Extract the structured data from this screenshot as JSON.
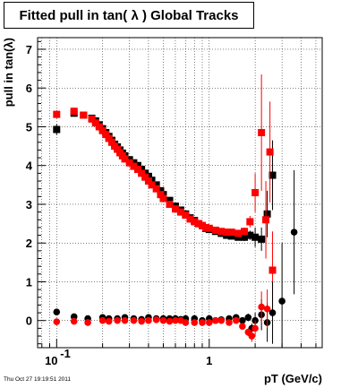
{
  "chart_data": {
    "type": "scatter",
    "title": "Fitted pull in tan( λ )  Global Tracks",
    "xlabel": "pT (GeV/c)",
    "ylabel": "pull in tan(λ)",
    "x_scale": "log",
    "xlim": [
      0.075,
      5.5
    ],
    "ylim": [
      -0.7,
      7.3
    ],
    "y_ticks": [
      "0",
      "1",
      "2",
      "3",
      "4",
      "5",
      "6",
      "7"
    ],
    "x_tick_labels": [
      {
        "value": 0.1,
        "base": "10",
        "exp": "-1"
      },
      {
        "value": 1,
        "base": "1",
        "exp": ""
      }
    ],
    "grid": true,
    "series": [
      {
        "color": "#000000",
        "marker": "square",
        "points": [
          [
            0.1,
            4.93,
            0.14
          ],
          [
            0.13,
            5.35,
            0.08
          ],
          [
            0.15,
            5.3,
            0.06
          ],
          [
            0.17,
            5.22,
            0.05
          ],
          [
            0.18,
            5.15,
            0.05
          ],
          [
            0.19,
            5.05,
            0.05
          ],
          [
            0.2,
            4.95,
            0.05
          ],
          [
            0.21,
            4.85,
            0.05
          ],
          [
            0.22,
            4.75,
            0.05
          ],
          [
            0.23,
            4.65,
            0.05
          ],
          [
            0.24,
            4.55,
            0.05
          ],
          [
            0.25,
            4.48,
            0.05
          ],
          [
            0.26,
            4.4,
            0.05
          ],
          [
            0.27,
            4.32,
            0.05
          ],
          [
            0.28,
            4.25,
            0.05
          ],
          [
            0.3,
            4.15,
            0.05
          ],
          [
            0.32,
            4.07,
            0.05
          ],
          [
            0.34,
            4.0,
            0.05
          ],
          [
            0.36,
            3.9,
            0.05
          ],
          [
            0.38,
            3.8,
            0.05
          ],
          [
            0.4,
            3.72,
            0.05
          ],
          [
            0.42,
            3.62,
            0.05
          ],
          [
            0.45,
            3.5,
            0.05
          ],
          [
            0.48,
            3.35,
            0.05
          ],
          [
            0.5,
            3.25,
            0.05
          ],
          [
            0.55,
            3.1,
            0.05
          ],
          [
            0.6,
            2.95,
            0.05
          ],
          [
            0.65,
            2.85,
            0.05
          ],
          [
            0.7,
            2.75,
            0.05
          ],
          [
            0.75,
            2.65,
            0.05
          ],
          [
            0.8,
            2.58,
            0.05
          ],
          [
            0.85,
            2.5,
            0.05
          ],
          [
            0.9,
            2.45,
            0.05
          ],
          [
            0.95,
            2.38,
            0.05
          ],
          [
            1.0,
            2.35,
            0.05
          ],
          [
            1.1,
            2.3,
            0.06
          ],
          [
            1.2,
            2.25,
            0.06
          ],
          [
            1.3,
            2.2,
            0.07
          ],
          [
            1.4,
            2.18,
            0.08
          ],
          [
            1.55,
            2.15,
            0.08
          ],
          [
            1.7,
            2.15,
            0.1
          ],
          [
            1.85,
            2.2,
            0.12
          ],
          [
            2.0,
            2.15,
            0.25
          ],
          [
            2.2,
            2.1,
            0.3
          ],
          [
            2.4,
            2.75,
            0.6
          ],
          [
            2.6,
            3.75,
            0.9
          ]
        ]
      },
      {
        "color": "#ff0000",
        "marker": "square",
        "points": [
          [
            0.1,
            5.32,
            0.1
          ],
          [
            0.13,
            5.4,
            0.08
          ],
          [
            0.15,
            5.3,
            0.06
          ],
          [
            0.17,
            5.2,
            0.05
          ],
          [
            0.18,
            5.1,
            0.05
          ],
          [
            0.19,
            5.0,
            0.05
          ],
          [
            0.2,
            4.9,
            0.05
          ],
          [
            0.21,
            4.8,
            0.05
          ],
          [
            0.22,
            4.7,
            0.05
          ],
          [
            0.23,
            4.6,
            0.05
          ],
          [
            0.24,
            4.5,
            0.05
          ],
          [
            0.25,
            4.42,
            0.05
          ],
          [
            0.26,
            4.33,
            0.05
          ],
          [
            0.27,
            4.25,
            0.05
          ],
          [
            0.28,
            4.17,
            0.05
          ],
          [
            0.3,
            4.07,
            0.05
          ],
          [
            0.32,
            3.98,
            0.05
          ],
          [
            0.34,
            3.9,
            0.05
          ],
          [
            0.36,
            3.8,
            0.05
          ],
          [
            0.38,
            3.7,
            0.05
          ],
          [
            0.4,
            3.6,
            0.05
          ],
          [
            0.42,
            3.5,
            0.05
          ],
          [
            0.45,
            3.4,
            0.05
          ],
          [
            0.48,
            3.25,
            0.05
          ],
          [
            0.5,
            3.15,
            0.05
          ],
          [
            0.55,
            3.0,
            0.05
          ],
          [
            0.6,
            2.88,
            0.05
          ],
          [
            0.65,
            2.8,
            0.05
          ],
          [
            0.7,
            2.72,
            0.05
          ],
          [
            0.75,
            2.62,
            0.05
          ],
          [
            0.8,
            2.55,
            0.05
          ],
          [
            0.85,
            2.5,
            0.05
          ],
          [
            0.9,
            2.45,
            0.05
          ],
          [
            0.95,
            2.4,
            0.05
          ],
          [
            1.0,
            2.38,
            0.05
          ],
          [
            1.1,
            2.33,
            0.06
          ],
          [
            1.2,
            2.3,
            0.06
          ],
          [
            1.3,
            2.28,
            0.07
          ],
          [
            1.4,
            2.28,
            0.08
          ],
          [
            1.55,
            2.25,
            0.08
          ],
          [
            1.7,
            2.3,
            0.1
          ],
          [
            1.85,
            2.55,
            0.15
          ],
          [
            2.0,
            3.3,
            0.5
          ],
          [
            2.2,
            4.85,
            1.5
          ],
          [
            2.35,
            2.6,
            1.0
          ],
          [
            2.5,
            4.35,
            1.3
          ],
          [
            2.6,
            1.3,
            1.0
          ]
        ]
      },
      {
        "color": "#000000",
        "marker": "circle",
        "points": [
          [
            0.1,
            0.22,
            0.08
          ],
          [
            0.13,
            0.1,
            0.06
          ],
          [
            0.16,
            0.05,
            0.04
          ],
          [
            0.2,
            0.08,
            0.04
          ],
          [
            0.22,
            0.05,
            0.04
          ],
          [
            0.25,
            0.05,
            0.04
          ],
          [
            0.28,
            0.08,
            0.04
          ],
          [
            0.32,
            0.05,
            0.04
          ],
          [
            0.36,
            0.03,
            0.04
          ],
          [
            0.4,
            0.08,
            0.04
          ],
          [
            0.45,
            0.05,
            0.04
          ],
          [
            0.5,
            0.05,
            0.04
          ],
          [
            0.55,
            0.05,
            0.04
          ],
          [
            0.6,
            0.05,
            0.04
          ],
          [
            0.65,
            0.03,
            0.04
          ],
          [
            0.7,
            0.05,
            0.04
          ],
          [
            0.8,
            0.05,
            0.04
          ],
          [
            0.9,
            0.0,
            0.04
          ],
          [
            1.0,
            0.05,
            0.05
          ],
          [
            1.1,
            0.0,
            0.05
          ],
          [
            1.2,
            0.02,
            0.05
          ],
          [
            1.35,
            0.05,
            0.06
          ],
          [
            1.5,
            0.08,
            0.06
          ],
          [
            1.65,
            0.0,
            0.08
          ],
          [
            1.8,
            0.08,
            0.1
          ],
          [
            1.9,
            -0.2,
            0.12
          ],
          [
            2.0,
            0.0,
            0.2
          ],
          [
            2.2,
            0.15,
            0.4
          ],
          [
            2.4,
            -0.05,
            0.5
          ],
          [
            2.6,
            0.2,
            0.8
          ],
          [
            3.0,
            0.5,
            1.5
          ],
          [
            3.6,
            2.28,
            1.6
          ]
        ]
      },
      {
        "color": "#ff0000",
        "marker": "circle",
        "points": [
          [
            0.1,
            -0.03,
            0.06
          ],
          [
            0.13,
            -0.02,
            0.05
          ],
          [
            0.16,
            -0.05,
            0.04
          ],
          [
            0.2,
            0.0,
            0.04
          ],
          [
            0.22,
            -0.02,
            0.04
          ],
          [
            0.25,
            0.0,
            0.04
          ],
          [
            0.28,
            0.0,
            0.04
          ],
          [
            0.32,
            0.0,
            0.04
          ],
          [
            0.36,
            -0.02,
            0.04
          ],
          [
            0.4,
            0.0,
            0.04
          ],
          [
            0.45,
            0.02,
            0.04
          ],
          [
            0.5,
            0.0,
            0.04
          ],
          [
            0.55,
            -0.02,
            0.04
          ],
          [
            0.6,
            0.0,
            0.04
          ],
          [
            0.65,
            0.0,
            0.04
          ],
          [
            0.7,
            -0.05,
            0.04
          ],
          [
            0.8,
            -0.05,
            0.04
          ],
          [
            0.9,
            -0.05,
            0.04
          ],
          [
            1.0,
            -0.05,
            0.05
          ],
          [
            1.1,
            0.0,
            0.05
          ],
          [
            1.2,
            0.0,
            0.05
          ],
          [
            1.35,
            -0.05,
            0.06
          ],
          [
            1.5,
            0.0,
            0.06
          ],
          [
            1.65,
            -0.15,
            0.08
          ],
          [
            1.8,
            -0.3,
            0.1
          ],
          [
            1.9,
            -0.4,
            0.15
          ],
          [
            2.0,
            -0.2,
            0.2
          ],
          [
            2.2,
            0.35,
            0.4
          ],
          [
            2.4,
            0.3,
            0.5
          ]
        ]
      }
    ]
  },
  "footer": {
    "timestamp": "Thu Oct 27 19:19:51 2011"
  }
}
